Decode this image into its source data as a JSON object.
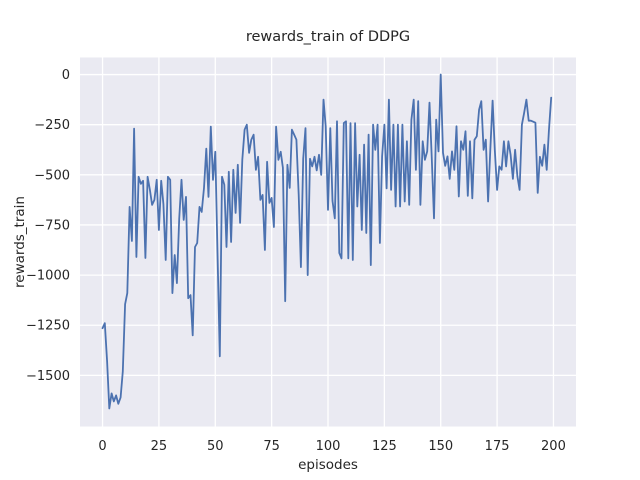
{
  "figure": {
    "title": "rewards_train of DDPG",
    "xlabel": "episodes",
    "ylabel": "rewards_train"
  },
  "chart_data": {
    "type": "line",
    "title": "rewards_train of DDPG",
    "xlabel": "episodes",
    "ylabel": "rewards_train",
    "x_is_index": true,
    "series": [
      {
        "name": "rewards_train",
        "color": "#4c72b0",
        "values": [
          -1265,
          -1240,
          -1430,
          -1665,
          -1590,
          -1630,
          -1600,
          -1642,
          -1610,
          -1480,
          -1145,
          -1090,
          -660,
          -830,
          -270,
          -910,
          -510,
          -545,
          -530,
          -915,
          -510,
          -575,
          -650,
          -625,
          -525,
          -775,
          -530,
          -645,
          -925,
          -510,
          -525,
          -1090,
          -900,
          -1040,
          -720,
          -525,
          -725,
          -610,
          -1115,
          -1100,
          -1300,
          -860,
          -840,
          -660,
          -685,
          -565,
          -370,
          -610,
          -260,
          -525,
          -385,
          -890,
          -1405,
          -510,
          -550,
          -860,
          -485,
          -835,
          -475,
          -690,
          -450,
          -740,
          -425,
          -275,
          -250,
          -390,
          -325,
          -300,
          -475,
          -410,
          -625,
          -600,
          -875,
          -435,
          -640,
          -615,
          -760,
          -260,
          -425,
          -385,
          -465,
          -1130,
          -450,
          -565,
          -275,
          -300,
          -325,
          -600,
          -960,
          -420,
          -267,
          -1000,
          -420,
          -458,
          -410,
          -478,
          -400,
          -500,
          -125,
          -258,
          -675,
          -267,
          -630,
          -717,
          -233,
          -890,
          -917,
          -242,
          -233,
          -917,
          -242,
          -925,
          -242,
          -658,
          -400,
          -775,
          -350,
          -790,
          -300,
          -950,
          -250,
          -375,
          -250,
          -840,
          -408,
          -250,
          -567,
          -125,
          -575,
          -250,
          -658,
          -250,
          -658,
          -250,
          -633,
          -333,
          -650,
          -225,
          -125,
          -475,
          -133,
          -650,
          -333,
          -425,
          -383,
          -140,
          -408,
          -717,
          -225,
          -383,
          0,
          -390,
          -455,
          -408,
          -520,
          -383,
          -475,
          -258,
          -608,
          -333,
          -375,
          -283,
          -605,
          -333,
          -617,
          -325,
          -308,
          -175,
          -133,
          -375,
          -325,
          -633,
          -375,
          -130,
          -375,
          -575,
          -458,
          -475,
          -333,
          -458,
          -333,
          -400,
          -520,
          -375,
          -508,
          -575,
          -250,
          -192,
          -125,
          -230,
          -230,
          -235,
          -240,
          -590,
          -410,
          -455,
          -350,
          -475,
          -280,
          -115
        ]
      }
    ],
    "xlim": [
      -10,
      210
    ],
    "ylim": [
      -1755,
      85
    ],
    "xticks": [
      0,
      25,
      50,
      75,
      100,
      125,
      150,
      175,
      200
    ],
    "xtick_labels": [
      "0",
      "25",
      "50",
      "75",
      "100",
      "125",
      "150",
      "175",
      "200"
    ],
    "yticks": [
      0,
      -250,
      -500,
      -750,
      -1000,
      -1250,
      -1500
    ],
    "ytick_labels": [
      "0",
      "−250",
      "−500",
      "−750",
      "−1000",
      "−1250",
      "−1500"
    ],
    "grid": true,
    "legend": false,
    "colors": {
      "figure_background": "#ffffff",
      "axes_background": "#eaeaf2",
      "grid": "#ffffff",
      "text": "#262626",
      "line": "#4c72b0"
    }
  }
}
